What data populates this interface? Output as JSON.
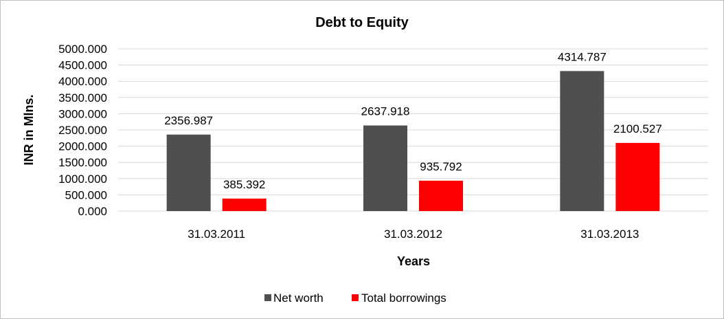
{
  "chart_data": {
    "type": "bar",
    "title": "Debt to Equity",
    "xlabel": "Years",
    "ylabel": "INR in Mlns.",
    "categories": [
      "31.03.2011",
      "31.03.2012",
      "31.03.2013"
    ],
    "series": [
      {
        "name": "Net worth",
        "values": [
          2356.987,
          2637.918,
          4314.787
        ],
        "labels": [
          "2356.987",
          "2637.918",
          "4314.787"
        ],
        "color": "#4f4f4f"
      },
      {
        "name": "Total borrowings",
        "values": [
          385.392,
          935.792,
          2100.527
        ],
        "labels": [
          "385.392",
          "935.792",
          "2100.527"
        ],
        "color": "#ff0000"
      }
    ],
    "ylim": [
      0,
      5000
    ],
    "yticks": [
      "0.000",
      "500.000",
      "1000.000",
      "1500.000",
      "2000.000",
      "2500.000",
      "3000.000",
      "3500.000",
      "4000.000",
      "4500.000",
      "5000.000"
    ],
    "grid": true,
    "legend_position": "bottom"
  }
}
